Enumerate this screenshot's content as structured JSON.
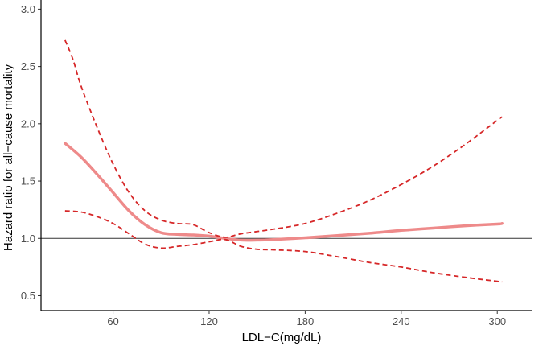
{
  "chart_data": {
    "type": "line",
    "xlabel": "LDL−C(mg/dL)",
    "ylabel": "Hazard ratio for all−cause mortality",
    "xlim": [
      15,
      322
    ],
    "ylim": [
      0.37,
      3.08
    ],
    "x_ticks": [
      60,
      120,
      180,
      240,
      300
    ],
    "x_tick_labels": [
      "60",
      "120",
      "180",
      "240",
      "300"
    ],
    "y_ticks": [
      0.5,
      1.0,
      1.5,
      2.0,
      2.5,
      3.0
    ],
    "y_tick_labels": [
      "0.5",
      "1.0",
      "1.5",
      "2.0",
      "2.5",
      "3.0"
    ],
    "reference_line": 1.0,
    "grid": false,
    "colors": {
      "estimate": "#ee8a8a",
      "ci": "#d62728",
      "reference": "#333333",
      "axis": "#000000"
    },
    "series": [
      {
        "role": "estimate",
        "style": "solid",
        "x": [
          30,
          40,
          50,
          60,
          70,
          80,
          90,
          100,
          110,
          120,
          130,
          140,
          150,
          160,
          180,
          200,
          220,
          240,
          260,
          280,
          300,
          303
        ],
        "y": [
          1.83,
          1.71,
          1.56,
          1.4,
          1.24,
          1.12,
          1.05,
          1.035,
          1.03,
          1.02,
          1.0,
          0.985,
          0.985,
          0.99,
          1.005,
          1.025,
          1.045,
          1.07,
          1.09,
          1.11,
          1.125,
          1.13
        ]
      },
      {
        "role": "upper_ci",
        "style": "dashed",
        "x": [
          30,
          35,
          40,
          50,
          60,
          70,
          80,
          90,
          100,
          110,
          120,
          130,
          140,
          160,
          180,
          200,
          220,
          240,
          260,
          280,
          300,
          303
        ],
        "y": [
          2.73,
          2.56,
          2.33,
          1.97,
          1.65,
          1.4,
          1.24,
          1.16,
          1.13,
          1.12,
          1.05,
          1.01,
          1.04,
          1.08,
          1.13,
          1.22,
          1.33,
          1.47,
          1.63,
          1.82,
          2.03,
          2.06
        ]
      },
      {
        "role": "lower_ci",
        "style": "dashed",
        "x": [
          30,
          40,
          50,
          60,
          70,
          80,
          90,
          100,
          110,
          120,
          130,
          140,
          150,
          160,
          180,
          200,
          220,
          240,
          260,
          280,
          300,
          303
        ],
        "y": [
          1.24,
          1.23,
          1.19,
          1.13,
          1.04,
          0.95,
          0.915,
          0.93,
          0.945,
          0.97,
          0.99,
          0.93,
          0.905,
          0.9,
          0.885,
          0.84,
          0.79,
          0.75,
          0.7,
          0.66,
          0.625,
          0.62
        ]
      }
    ]
  }
}
